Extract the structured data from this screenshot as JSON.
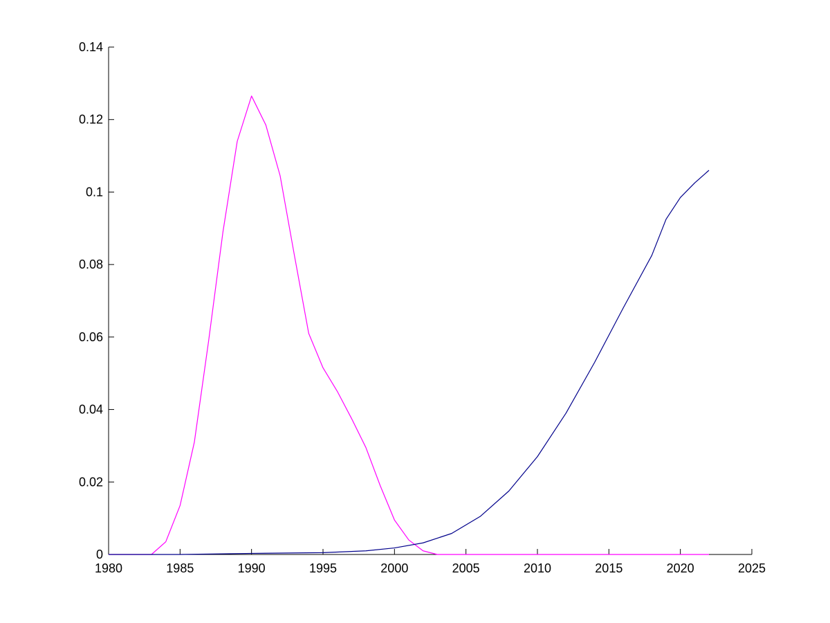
{
  "chart_data": {
    "type": "line",
    "title": "",
    "xlabel": "",
    "ylabel": "",
    "xlim": [
      1980,
      2025
    ],
    "ylim": [
      0,
      0.14
    ],
    "grid": false,
    "legend": "none",
    "x_ticks": [
      "1980",
      "1985",
      "1990",
      "1995",
      "2000",
      "2005",
      "2010",
      "2015",
      "2020",
      "2025"
    ],
    "y_ticks": [
      "0",
      "0.02",
      "0.04",
      "0.06",
      "0.08",
      "0.1",
      "0.12",
      "0.14"
    ],
    "x_tick_values": [
      1980,
      1985,
      1990,
      1995,
      2000,
      2005,
      2010,
      2015,
      2020,
      2025
    ],
    "y_tick_values": [
      0,
      0.02,
      0.04,
      0.06,
      0.08,
      0.1,
      0.12,
      0.14
    ],
    "series": [
      {
        "color": "#ff00ff",
        "x": [
          1980,
          1981,
          1982,
          1983,
          1984,
          1985,
          1986,
          1987,
          1988,
          1989,
          1990,
          1991,
          1992,
          1993,
          1994,
          1995,
          1996,
          1997,
          1998,
          1999,
          2000,
          2001,
          2002,
          2003,
          2004,
          2010,
          2015,
          2020,
          2022
        ],
        "y": [
          0,
          0,
          0,
          0,
          0.0035,
          0.0135,
          0.031,
          0.059,
          0.089,
          0.114,
          0.1265,
          0.1185,
          0.1045,
          0.0825,
          0.061,
          0.0515,
          0.045,
          0.0375,
          0.0295,
          0.019,
          0.0095,
          0.004,
          0.001,
          0,
          0,
          0,
          0,
          0,
          0
        ]
      },
      {
        "color": "#00008b",
        "x": [
          1980,
          1985,
          1990,
          1995,
          1998,
          2000,
          2002,
          2004,
          2006,
          2008,
          2010,
          2012,
          2014,
          2016,
          2018,
          2019,
          2020,
          2021,
          2022
        ],
        "y": [
          0,
          0,
          0.0003,
          0.0005,
          0.001,
          0.0018,
          0.0032,
          0.0058,
          0.0105,
          0.0175,
          0.027,
          0.039,
          0.053,
          0.068,
          0.0825,
          0.0925,
          0.0985,
          0.1025,
          0.106
        ]
      }
    ]
  }
}
